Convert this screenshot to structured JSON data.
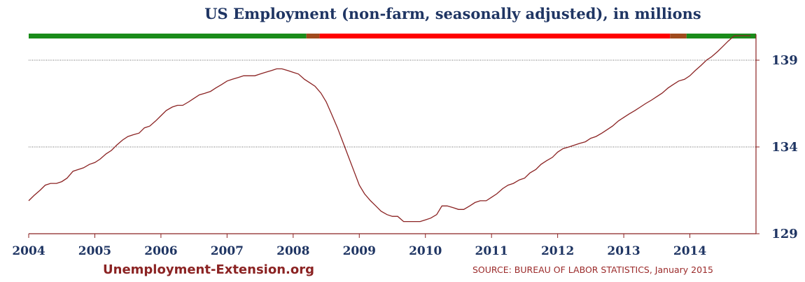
{
  "chart_data": {
    "type": "line",
    "title": "US Employment (non-farm, seasonally adjusted), in millions",
    "xlabel": "",
    "ylabel": "",
    "xlim": [
      2004.0,
      2015.0
    ],
    "ylim": [
      129,
      139.1
    ],
    "x_ticks": [
      "2004",
      "2005",
      "2006",
      "2007",
      "2008",
      "2009",
      "2010",
      "2011",
      "2012",
      "2013",
      "2014"
    ],
    "y_ticks": [
      "129",
      "134",
      "139"
    ],
    "y_axis_side": "right",
    "gridlines": [
      134,
      139
    ],
    "line_color": "#8b2323",
    "series": [
      {
        "x": [
          2004.0,
          2004.08,
          2004.17,
          2004.25,
          2004.33,
          2004.42,
          2004.5,
          2004.58,
          2004.67,
          2004.75,
          2004.83,
          2004.92,
          2005.0,
          2005.08,
          2005.17,
          2005.25,
          2005.33,
          2005.42,
          2005.5,
          2005.58,
          2005.67,
          2005.75,
          2005.83,
          2005.92,
          2006.0,
          2006.08,
          2006.17,
          2006.25,
          2006.33,
          2006.42,
          2006.5,
          2006.58,
          2006.67,
          2006.75,
          2006.83,
          2006.92,
          2007.0,
          2007.08,
          2007.17,
          2007.25,
          2007.33,
          2007.42,
          2007.5,
          2007.58,
          2007.67,
          2007.75,
          2007.83,
          2007.92,
          2008.0,
          2008.08,
          2008.17,
          2008.25,
          2008.33,
          2008.42,
          2008.5,
          2008.58,
          2008.67,
          2008.75,
          2008.83,
          2008.92,
          2009.0,
          2009.08,
          2009.17,
          2009.25,
          2009.33,
          2009.42,
          2009.5,
          2009.58,
          2009.67,
          2009.75,
          2009.83,
          2009.92,
          2010.0,
          2010.08,
          2010.17,
          2010.25,
          2010.33,
          2010.42,
          2010.5,
          2010.58,
          2010.67,
          2010.75,
          2010.83,
          2010.92,
          2011.0,
          2011.08,
          2011.17,
          2011.25,
          2011.33,
          2011.42,
          2011.5,
          2011.58,
          2011.67,
          2011.75,
          2011.83,
          2011.92,
          2012.0,
          2012.08,
          2012.17,
          2012.25,
          2012.33,
          2012.42,
          2012.5,
          2012.58,
          2012.67,
          2012.75,
          2012.83,
          2012.92,
          2013.0,
          2013.08,
          2013.17,
          2013.25,
          2013.33,
          2013.42,
          2013.5,
          2013.58,
          2013.67,
          2013.75,
          2013.83,
          2013.92,
          2014.0,
          2014.08,
          2014.17,
          2014.25,
          2014.33,
          2014.42,
          2014.5,
          2014.58,
          2014.67,
          2014.75,
          2014.83,
          2014.92
        ],
        "values": [
          130.9,
          131.2,
          131.5,
          131.8,
          131.9,
          131.9,
          132.0,
          132.2,
          132.6,
          132.7,
          132.8,
          133.0,
          133.1,
          133.3,
          133.6,
          133.8,
          134.1,
          134.4,
          134.6,
          134.7,
          134.8,
          135.1,
          135.2,
          135.5,
          135.8,
          136.1,
          136.3,
          136.4,
          136.4,
          136.6,
          136.8,
          137.0,
          137.1,
          137.2,
          137.4,
          137.6,
          137.8,
          137.9,
          138.0,
          138.1,
          138.1,
          138.1,
          138.2,
          138.3,
          138.4,
          138.5,
          138.5,
          138.4,
          138.3,
          138.2,
          137.9,
          137.7,
          137.5,
          137.1,
          136.6,
          135.9,
          135.1,
          134.3,
          133.5,
          132.6,
          131.8,
          131.3,
          130.9,
          130.6,
          130.3,
          130.1,
          130.0,
          130.0,
          129.7,
          129.7,
          129.7,
          129.7,
          129.8,
          129.9,
          130.1,
          130.6,
          130.6,
          130.5,
          130.4,
          130.4,
          130.6,
          130.8,
          130.9,
          130.9,
          131.1,
          131.3,
          131.6,
          131.8,
          131.9,
          132.1,
          132.2,
          132.5,
          132.7,
          133.0,
          133.2,
          133.4,
          133.7,
          133.9,
          134.0,
          134.1,
          134.2,
          134.3,
          134.5,
          134.6,
          134.8,
          135.0,
          135.2,
          135.5,
          135.7,
          135.9,
          136.1,
          136.3,
          136.5,
          136.7,
          136.9,
          137.1,
          137.4,
          137.6,
          137.8,
          137.9,
          138.1,
          138.4,
          138.7,
          139.0,
          139.2,
          139.5,
          139.8,
          140.1,
          140.4,
          140.6,
          140.9,
          141.1
        ]
      }
    ],
    "top_bar": [
      {
        "from": 2004.0,
        "to": 2008.2,
        "color": "#1a8c1a"
      },
      {
        "from": 2008.2,
        "to": 2008.4,
        "color": "#a04a1c"
      },
      {
        "from": 2008.4,
        "to": 2013.7,
        "color": "#ff0000"
      },
      {
        "from": 2013.7,
        "to": 2013.95,
        "color": "#a04a1c"
      },
      {
        "from": 2013.95,
        "to": 2015.0,
        "color": "#1a8c1a"
      }
    ]
  },
  "footer": {
    "brand": "Unemployment-Extension.org",
    "source": "SOURCE: BUREAU OF LABOR STATISTICS, January 2015"
  }
}
